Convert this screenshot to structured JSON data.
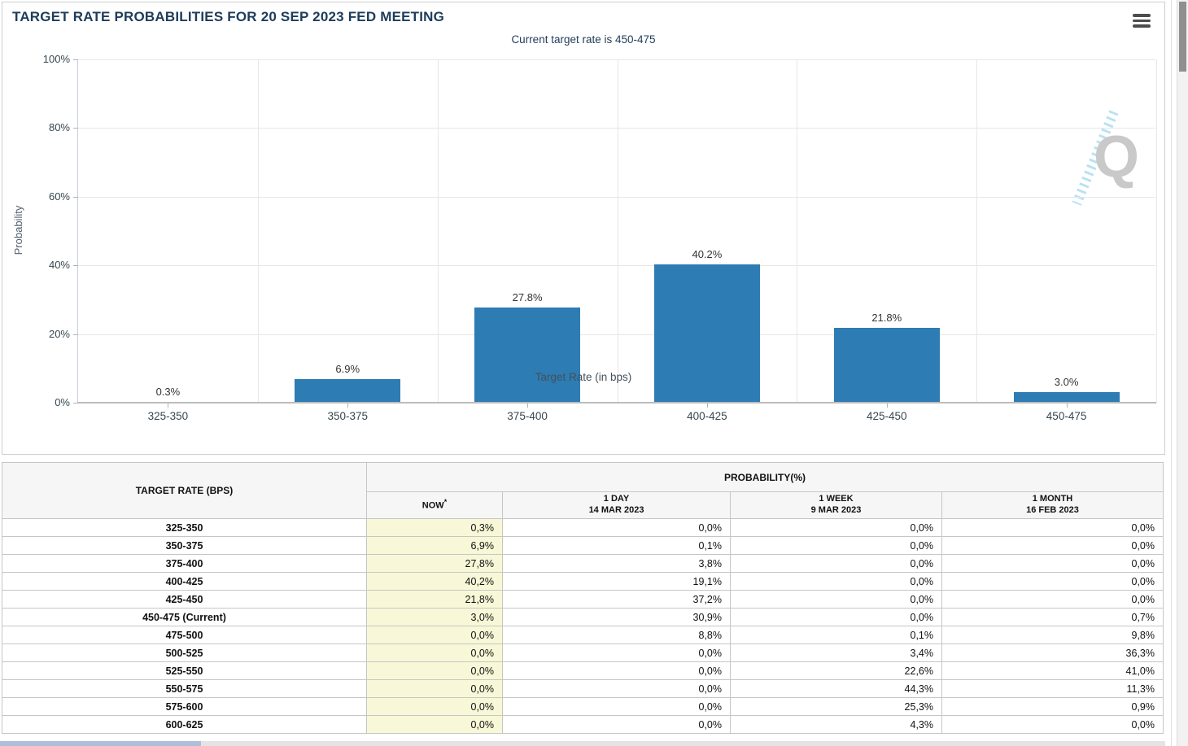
{
  "chart": {
    "title": "TARGET RATE PROBABILITIES FOR 20 SEP 2023 FED MEETING",
    "subtitle": "Current target rate is 450-475"
  },
  "chart_data": {
    "type": "bar",
    "title": "TARGET RATE PROBABILITIES FOR 20 SEP 2023 FED MEETING",
    "subtitle": "Current target rate is 450-475",
    "categories": [
      "325-350",
      "350-375",
      "375-400",
      "400-425",
      "425-450",
      "450-475"
    ],
    "values": [
      0.3,
      6.9,
      27.8,
      40.2,
      21.8,
      3.0
    ],
    "labels": [
      "0.3%",
      "6.9%",
      "27.8%",
      "40.2%",
      "21.8%",
      "3.0%"
    ],
    "xlabel": "Target Rate (in bps)",
    "ylabel": "Probability",
    "ylim": [
      0,
      100
    ],
    "ytick_step": 20,
    "yticks": [
      "0%",
      "20%",
      "40%",
      "60%",
      "80%",
      "100%"
    ],
    "grid": true,
    "legend": "none",
    "bar_color": "#2e7cb4"
  },
  "table": {
    "rate_header": "TARGET RATE (BPS)",
    "prob_header": "PROBABILITY(%)",
    "now_label": "NOW",
    "now_asterisk": "*",
    "columns": [
      {
        "label": "1 DAY",
        "date": "14 MAR 2023"
      },
      {
        "label": "1 WEEK",
        "date": "9 MAR 2023"
      },
      {
        "label": "1 MONTH",
        "date": "16 FEB 2023"
      }
    ],
    "rows": [
      [
        "325-350",
        "0,3%",
        "0,0%",
        "0,0%",
        "0,0%"
      ],
      [
        "350-375",
        "6,9%",
        "0,1%",
        "0,0%",
        "0,0%"
      ],
      [
        "375-400",
        "27,8%",
        "3,8%",
        "0,0%",
        "0,0%"
      ],
      [
        "400-425",
        "40,2%",
        "19,1%",
        "0,0%",
        "0,0%"
      ],
      [
        "425-450",
        "21,8%",
        "37,2%",
        "0,0%",
        "0,0%"
      ],
      [
        "450-475 (Current)",
        "3,0%",
        "30,9%",
        "0,0%",
        "0,7%"
      ],
      [
        "475-500",
        "0,0%",
        "8,8%",
        "0,1%",
        "9,8%"
      ],
      [
        "500-525",
        "0,0%",
        "0,0%",
        "3,4%",
        "36,3%"
      ],
      [
        "525-550",
        "0,0%",
        "0,0%",
        "22,6%",
        "41,0%"
      ],
      [
        "550-575",
        "0,0%",
        "0,0%",
        "44,3%",
        "11,3%"
      ],
      [
        "575-600",
        "0,0%",
        "0,0%",
        "25,3%",
        "0,9%"
      ],
      [
        "600-625",
        "0,0%",
        "0,0%",
        "4,3%",
        "0,0%"
      ]
    ]
  },
  "colors": {
    "bar_blue": "#2e7cb4",
    "title_navy": "#1e3c59",
    "now_column_bg": "#f8f8d8"
  }
}
